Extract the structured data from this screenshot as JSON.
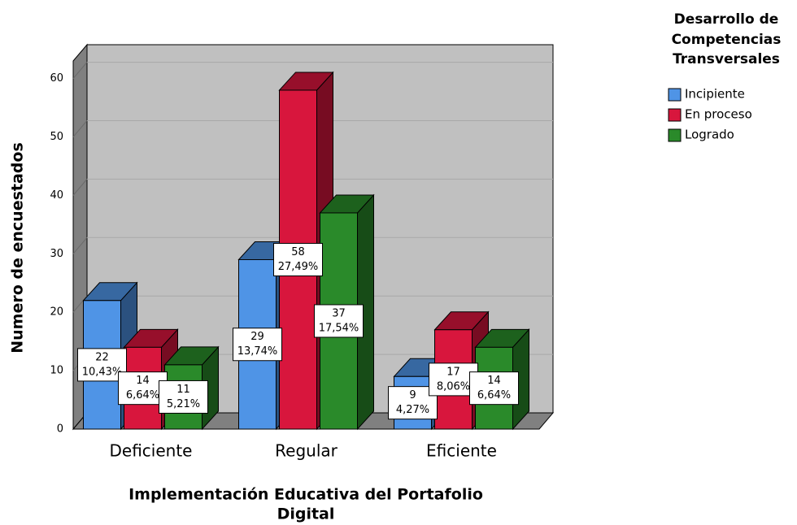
{
  "chart_data": {
    "type": "bar3d",
    "y_axis_label": "Numero de encuestados",
    "x_axis_label": [
      "Implementación Educativa del Portafolio",
      "Digital"
    ],
    "legend_title": [
      "Desarrollo de",
      "Competencias",
      "Transversales"
    ],
    "categories": [
      "Deficiente",
      "Regular",
      "Eficiente"
    ],
    "series": [
      {
        "name": "Incipiente",
        "color": "#4f94e6",
        "values": [
          22,
          29,
          9
        ],
        "percent_labels": [
          "10,43%",
          "13,74%",
          "4,27%"
        ]
      },
      {
        "name": "En proceso",
        "color": "#d8163d",
        "values": [
          14,
          58,
          17
        ],
        "percent_labels": [
          "6,64%",
          "27,49%",
          "8,06%"
        ]
      },
      {
        "name": "Logrado",
        "color": "#2a8a2a",
        "values": [
          11,
          37,
          14
        ],
        "percent_labels": [
          "5,21%",
          "17,54%",
          "6,64%"
        ]
      }
    ],
    "ylim": [
      0,
      63
    ],
    "yticks": [
      0,
      10,
      20,
      30,
      40,
      50,
      60
    ],
    "grid": true,
    "legend": "right"
  }
}
